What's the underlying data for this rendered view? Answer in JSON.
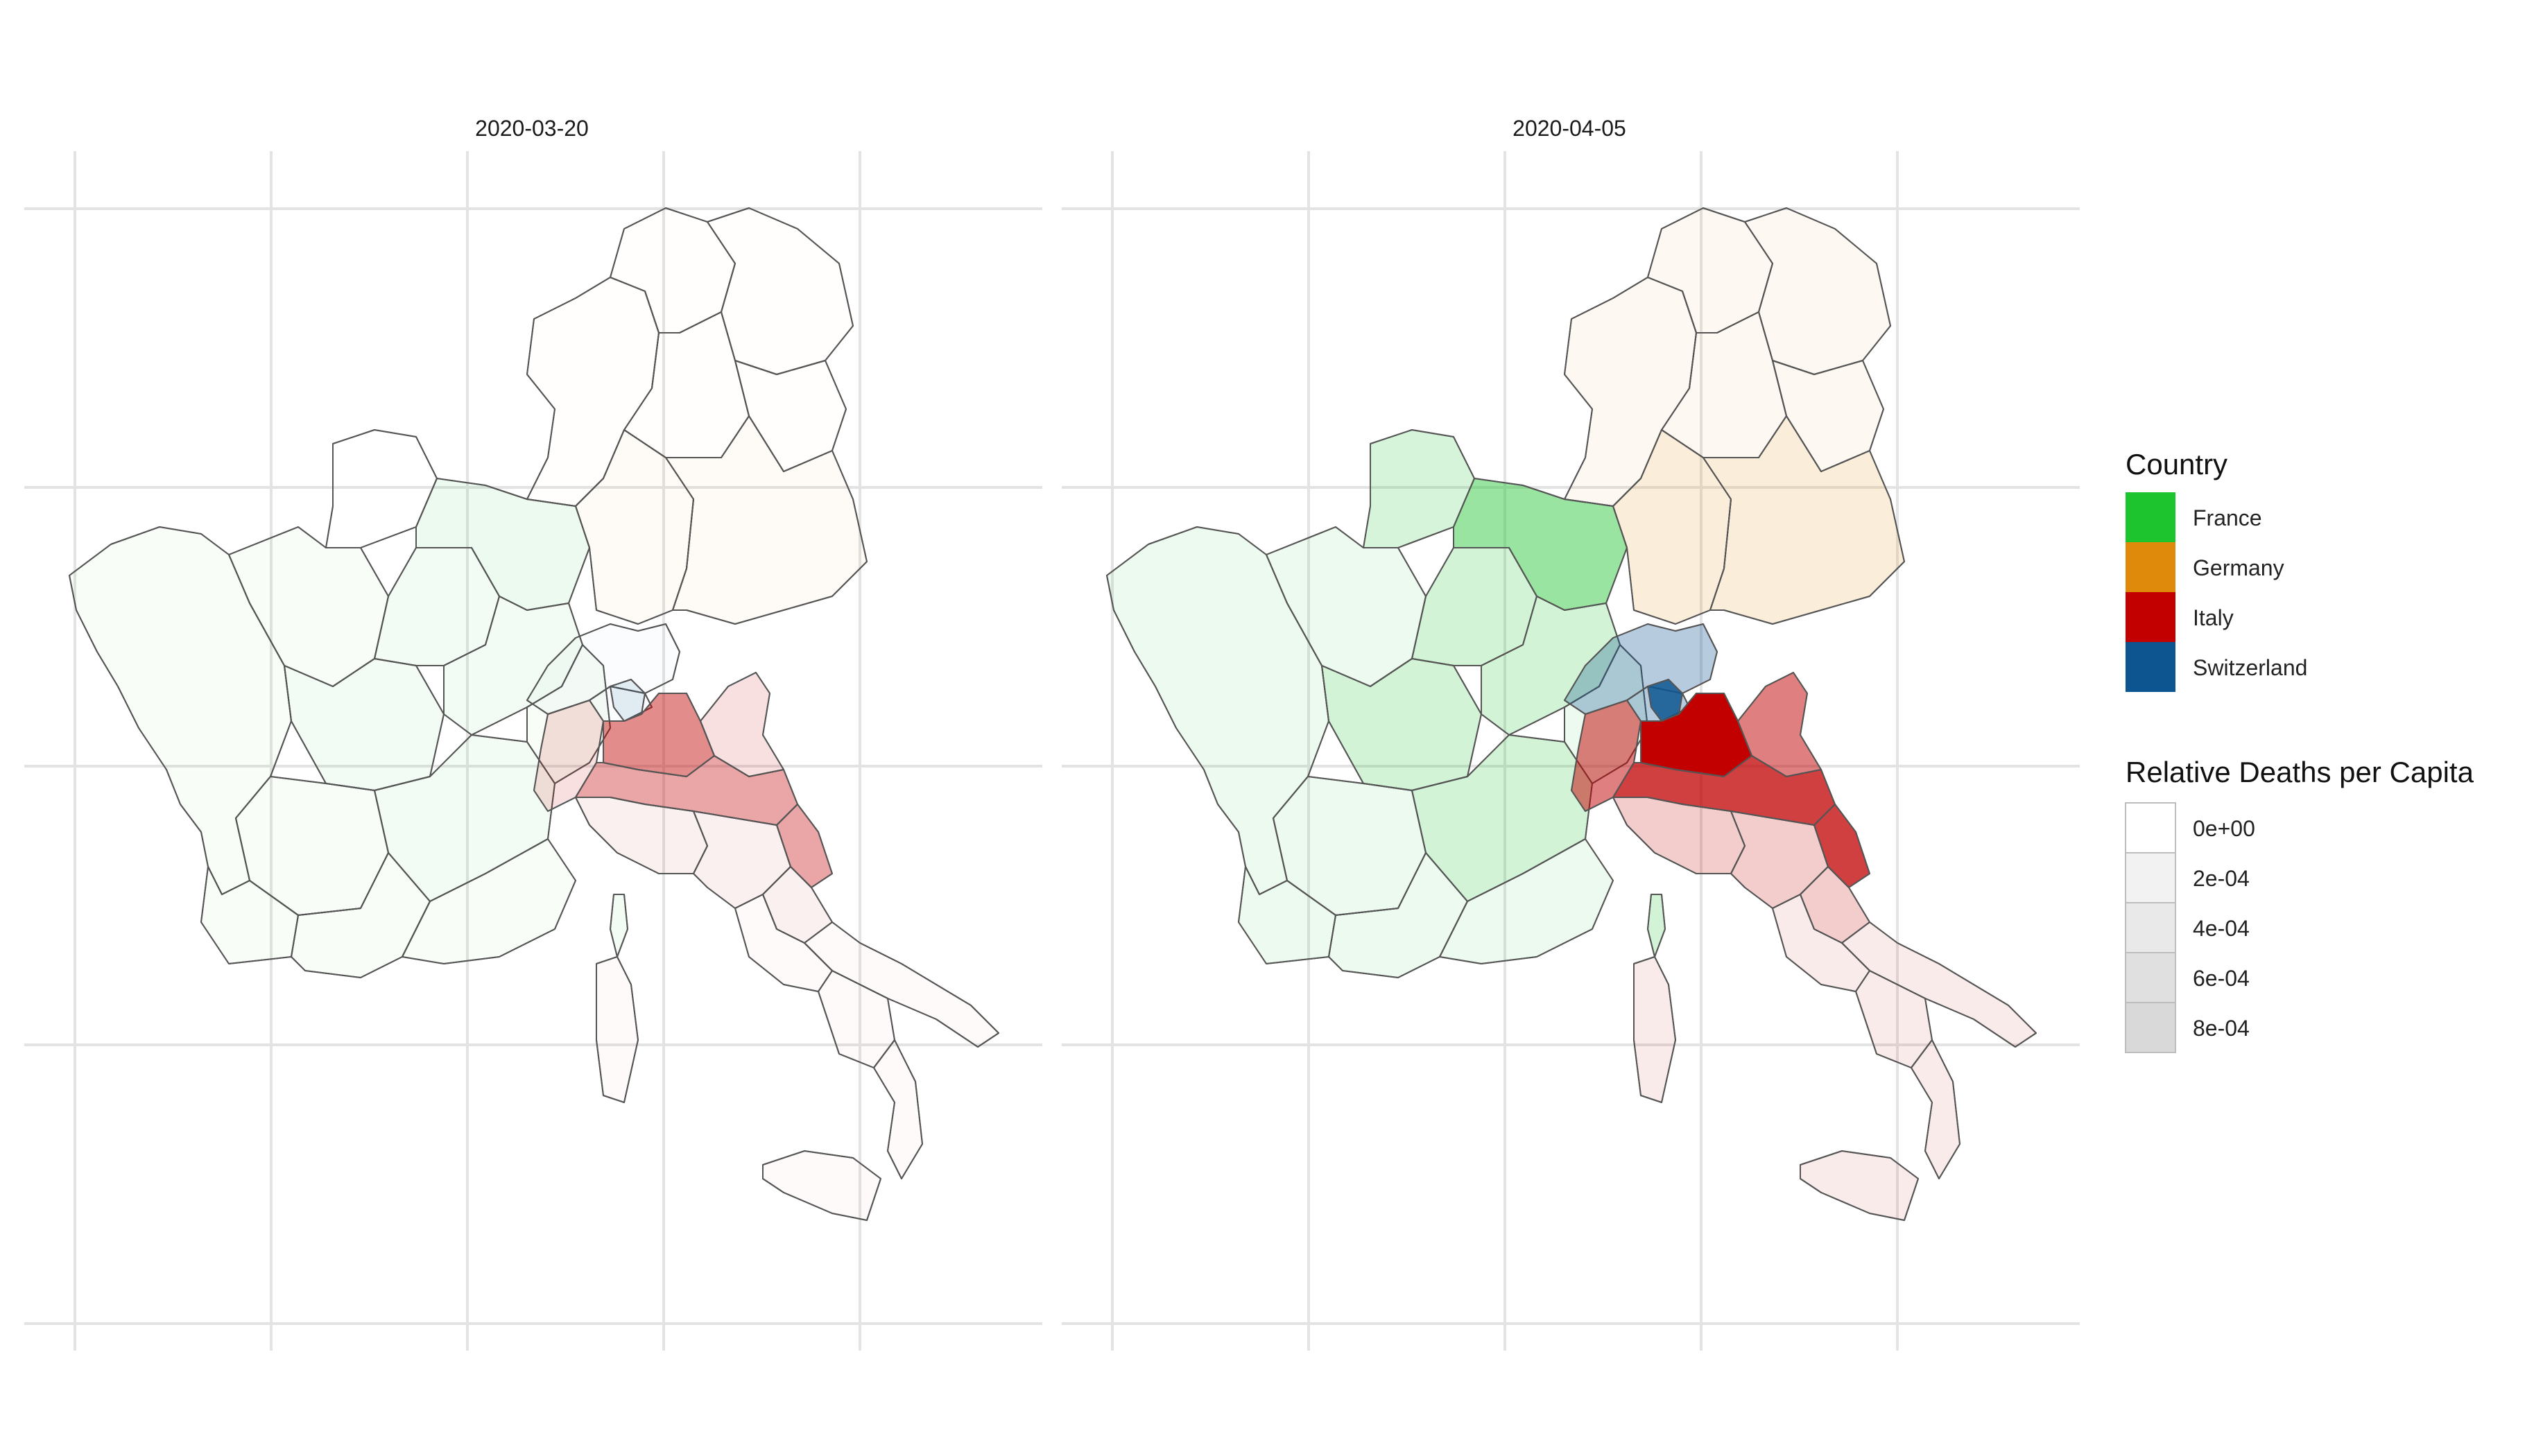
{
  "panels": [
    {
      "title": "2020-03-20"
    },
    {
      "title": "2020-04-05"
    }
  ],
  "legend": {
    "country_title": "Country",
    "countries": [
      {
        "name": "France",
        "color": "#1dc42d"
      },
      {
        "name": "Germany",
        "color": "#e08a0b"
      },
      {
        "name": "Italy",
        "color": "#c20000"
      },
      {
        "name": "Switzerland",
        "color": "#0d5591"
      }
    ],
    "deaths_title": "Relative Deaths per Capita",
    "deaths_breaks": [
      {
        "label": "0e+00",
        "value": 0,
        "color": "#ffffff"
      },
      {
        "label": "2e-04",
        "value": 0.0002,
        "color": "#f2f2f2"
      },
      {
        "label": "4e-04",
        "value": 0.0004,
        "color": "#e9e9e9"
      },
      {
        "label": "6e-04",
        "value": 0.0006,
        "color": "#e0e0e0"
      },
      {
        "label": "8e-04",
        "value": 0.0008,
        "color": "#d9d9d9"
      }
    ]
  },
  "chart_data": {
    "type": "choropleth",
    "map_regions": "France, Germany, Italy and Switzerland by region",
    "fill_color": "country",
    "fill_alpha": "relative deaths per capita",
    "grid": true,
    "legend_position": "right",
    "levels": [
      {
        "date": "2020-03-20",
        "intensity": {
          "France": {
            "low": 0.03,
            "northeast": 0.08,
            "mid": 0.05
          },
          "Germany": {
            "low": 0.01,
            "south": 0.03
          },
          "Italy": {
            "lombardy": 0.45,
            "north": 0.12,
            "emilia": 0.35,
            "mid": 0.06,
            "south": 0.02
          },
          "Switzerland": {
            "low": 0.02,
            "ticino": 0.1
          }
        }
      },
      {
        "date": "2020-04-05",
        "intensity": {
          "France": {
            "low": 0.08,
            "northeast": 0.45,
            "north": 0.18,
            "mid": 0.2
          },
          "Germany": {
            "low": 0.06,
            "south": 0.15
          },
          "Italy": {
            "lombardy": 1.0,
            "north": 0.5,
            "emilia": 0.75,
            "mid": 0.2,
            "south": 0.08
          },
          "Switzerland": {
            "low": 0.3,
            "ticino": 0.85
          }
        }
      }
    ]
  }
}
